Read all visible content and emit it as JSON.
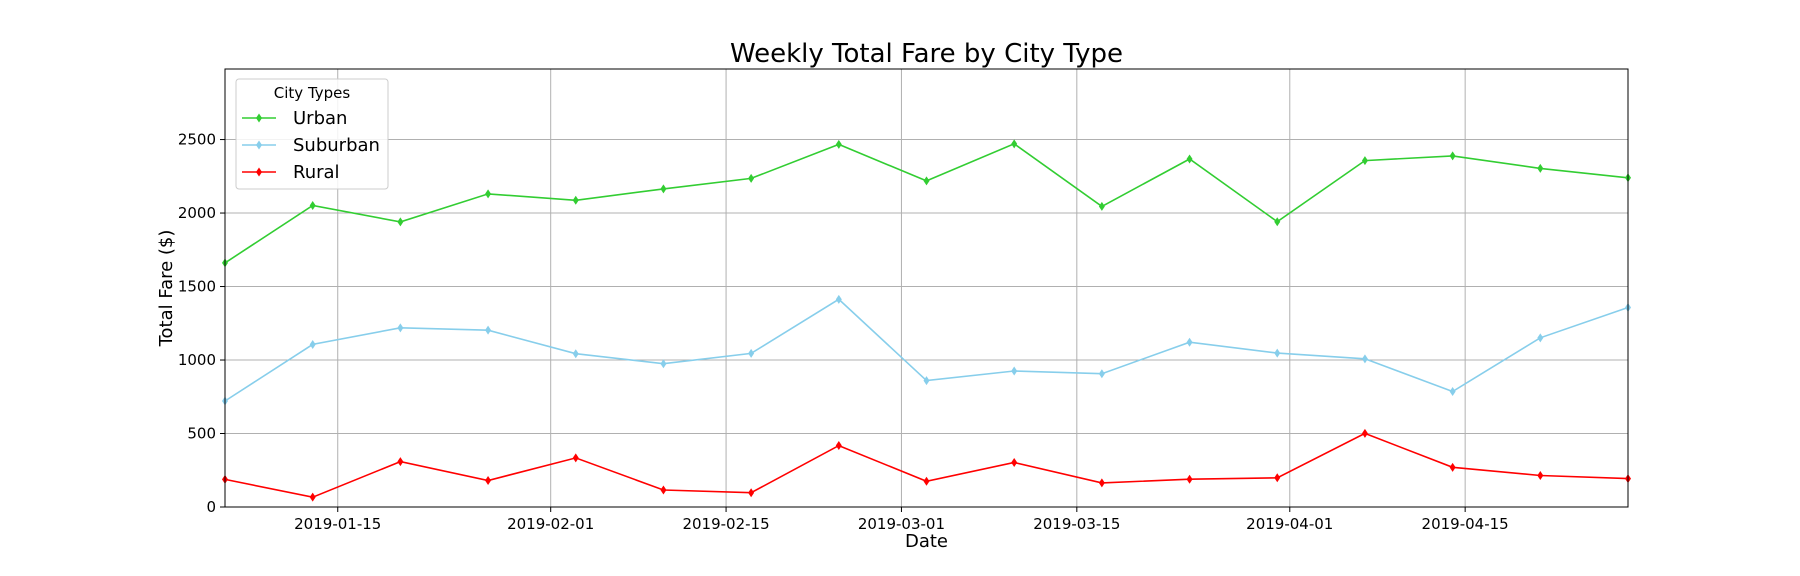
{
  "chart_data": {
    "type": "line",
    "title": "Weekly Total Fare by City Type",
    "xlabel": "Date",
    "ylabel": "Total Fare ($)",
    "ylim": [
      0,
      2980
    ],
    "yticks": [
      0,
      500,
      1000,
      1500,
      2000,
      2500
    ],
    "x": [
      "2019-01-06",
      "2019-01-13",
      "2019-01-20",
      "2019-01-27",
      "2019-02-03",
      "2019-02-10",
      "2019-02-17",
      "2019-02-24",
      "2019-03-03",
      "2019-03-10",
      "2019-03-17",
      "2019-03-24",
      "2019-03-31",
      "2019-04-07",
      "2019-04-14",
      "2019-04-21",
      "2019-04-28"
    ],
    "xticks": [
      "2019-01-15",
      "2019-02-01",
      "2019-02-15",
      "2019-03-01",
      "2019-03-15",
      "2019-04-01",
      "2019-04-15"
    ],
    "grid": true,
    "legend": {
      "title": "City Types",
      "position": "top-left"
    },
    "series": [
      {
        "name": "Urban",
        "color": "#32cd32",
        "values": [
          1661,
          2051,
          1940,
          2130,
          2087,
          2164,
          2236,
          2467,
          2219,
          2471,
          2045,
          2368,
          1941,
          2357,
          2389,
          2304,
          2240
        ]
      },
      {
        "name": "Suburban",
        "color": "#87ceeb",
        "values": [
          721,
          1106,
          1219,
          1203,
          1043,
          975,
          1045,
          1413,
          860,
          925,
          907,
          1121,
          1047,
          1008,
          786,
          1151,
          1357
        ]
      },
      {
        "name": "Rural",
        "color": "#ff0000",
        "values": [
          188,
          67,
          309,
          180,
          334,
          116,
          97,
          418,
          175,
          303,
          164,
          189,
          199,
          501,
          270,
          214,
          193
        ]
      }
    ]
  }
}
